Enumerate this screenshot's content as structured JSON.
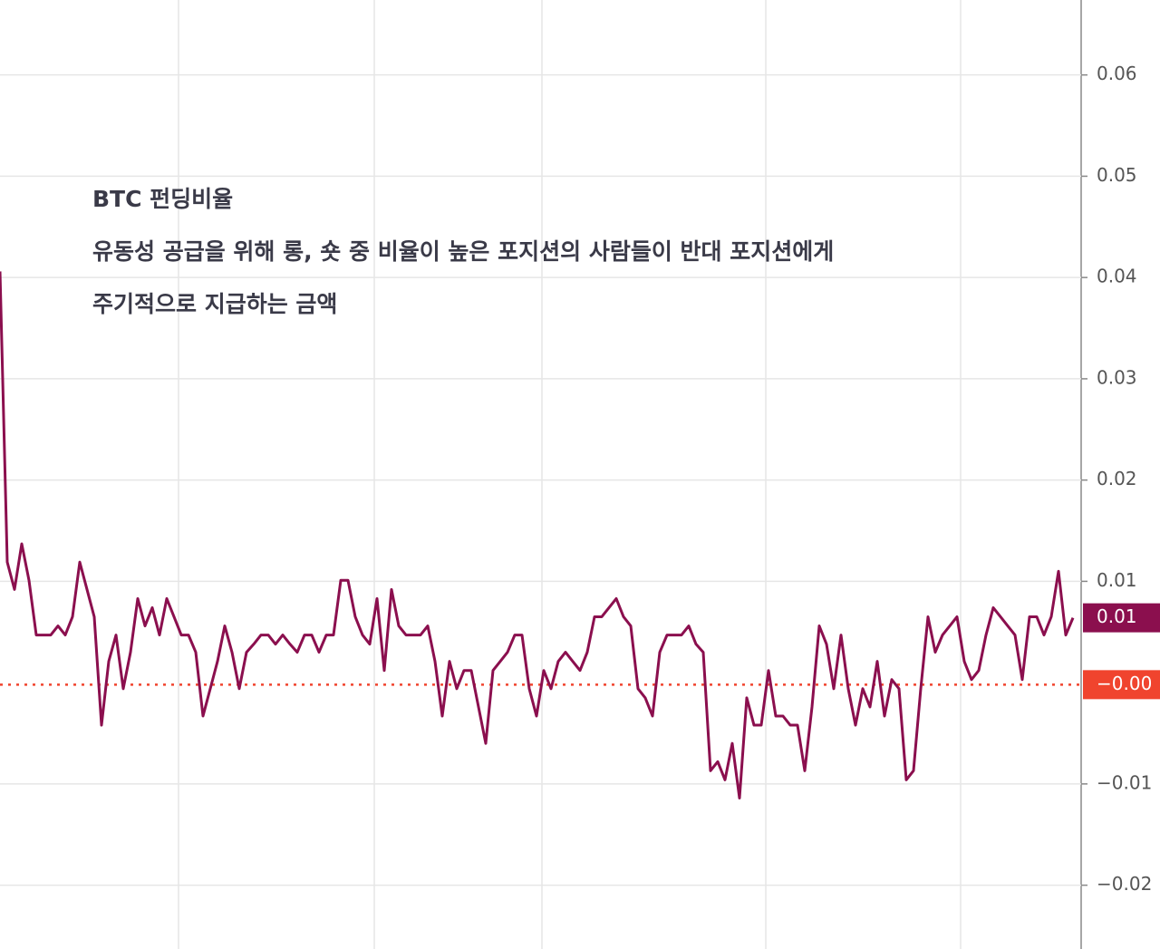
{
  "chart_data": {
    "type": "line",
    "annotations": [
      "BTC 펀딩비율",
      "유동성 공급을 위해 롱, 숏 중 비율이 높은 포지션의 사람들이 반대 포지션에게",
      "주기적으로 지급하는 금액"
    ],
    "series": [
      {
        "color": "#8b0f4e",
        "values": [
          0.0406,
          0.0119,
          0.0092,
          0.0137,
          0.0101,
          0.0047,
          0.0047,
          0.0047,
          0.0056,
          0.0047,
          0.0065,
          0.0119,
          0.0092,
          0.0065,
          -0.0042,
          0.0021,
          0.0047,
          -0.0006,
          0.003,
          0.0083,
          0.0056,
          0.0074,
          0.0047,
          0.0083,
          0.0065,
          0.0047,
          0.0047,
          0.003,
          -0.0033,
          -0.0006,
          0.0021,
          0.0056,
          0.003,
          -0.0006,
          0.003,
          0.0038,
          0.0047,
          0.0047,
          0.0038,
          0.0047,
          0.0038,
          0.003,
          0.0047,
          0.0047,
          0.003,
          0.0047,
          0.0047,
          0.0101,
          0.0101,
          0.0065,
          0.0047,
          0.0038,
          0.0083,
          0.0012,
          0.0092,
          0.0056,
          0.0047,
          0.0047,
          0.0047,
          0.0056,
          0.0021,
          -0.0033,
          0.0021,
          -0.0006,
          0.0012,
          0.0012,
          -0.0024,
          -0.006,
          0.0012,
          0.0021,
          0.003,
          0.0047,
          0.0047,
          -0.0006,
          -0.0033,
          0.0012,
          -0.0006,
          0.0021,
          0.003,
          0.0021,
          0.0012,
          0.003,
          0.0065,
          0.0065,
          0.0074,
          0.0083,
          0.0065,
          0.0056,
          -0.0006,
          -0.0015,
          -0.0033,
          0.003,
          0.0047,
          0.0047,
          0.0047,
          0.0056,
          0.0038,
          0.003,
          -0.0087,
          -0.0078,
          -0.0096,
          -0.006,
          -0.0114,
          -0.0015,
          -0.0042,
          -0.0042,
          0.0012,
          -0.0033,
          -0.0033,
          -0.0042,
          -0.0042,
          -0.0087,
          -0.0024,
          0.0056,
          0.0038,
          -0.0006,
          0.0047,
          -0.0006,
          -0.0042,
          -0.0006,
          -0.0024,
          0.0021,
          -0.0033,
          0.0003,
          -0.0006,
          -0.0096,
          -0.0087,
          -0.0006,
          0.0065,
          0.003,
          0.0047,
          0.0056,
          0.0065,
          0.0021,
          0.0003,
          0.0012,
          0.0047,
          0.0074,
          0.0065,
          0.0056,
          0.0047,
          0.0003,
          0.0065,
          0.0065,
          0.0047,
          0.0065,
          0.011,
          0.0047,
          0.0064
        ]
      }
    ],
    "ylim": [
      -0.0263,
      0.0674
    ],
    "yticks": [
      0.06,
      0.05,
      0.04,
      0.03,
      0.02,
      0.01,
      {
        "value": -0.01,
        "label": "−0.01"
      },
      {
        "value": -0.02,
        "label": "−0.02"
      }
    ],
    "markers": [
      {
        "value": 0.0064,
        "label": "0.01",
        "color": "#8b0f4e"
      },
      {
        "value": -0.0002,
        "label": "−0.00",
        "color": "#f0442e"
      }
    ],
    "grid": true
  }
}
